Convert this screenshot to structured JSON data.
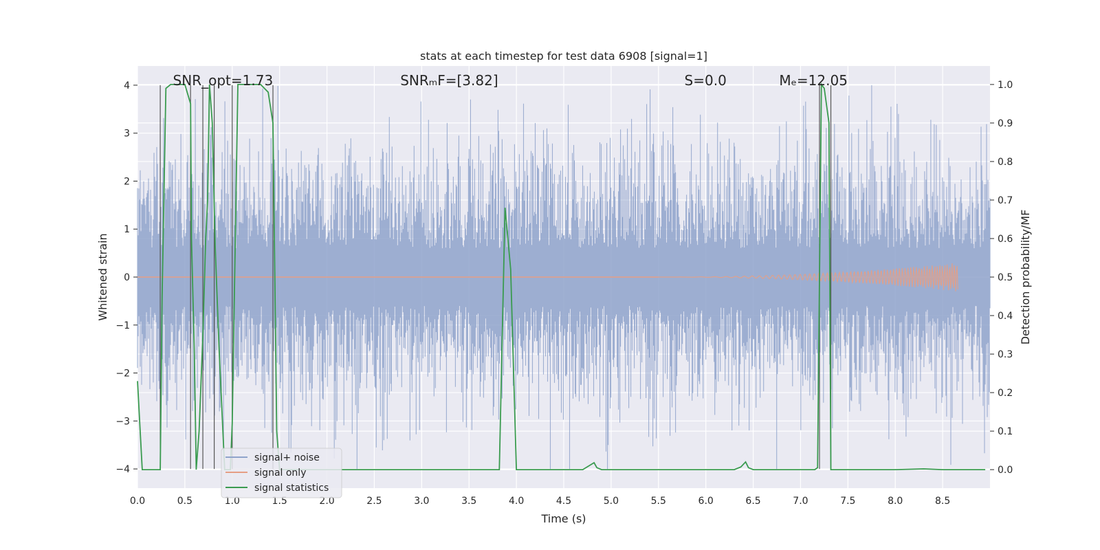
{
  "chart_data": {
    "type": "line",
    "title": "stats at each timestep for test data 6908 [signal=1]",
    "xlabel": "Time (s)",
    "ylabel": "Whitened strain",
    "y2label": "Detection probability/MF",
    "xlim": [
      0.0,
      9.0
    ],
    "ylim": [
      -4.4,
      4.4
    ],
    "y2lim": [
      -0.048,
      1.048
    ],
    "xticks": [
      0.0,
      0.5,
      1.0,
      1.5,
      2.0,
      2.5,
      3.0,
      3.5,
      4.0,
      4.5,
      5.0,
      5.5,
      6.0,
      6.5,
      7.0,
      7.5,
      8.0,
      8.5
    ],
    "xtick_labels": [
      "0.0",
      "0.5",
      "1.0",
      "1.5",
      "2.0",
      "2.5",
      "3.0",
      "3.5",
      "4.0",
      "4.5",
      "5.0",
      "5.5",
      "6.0",
      "6.5",
      "7.0",
      "7.5",
      "8.0",
      "8.5"
    ],
    "yticks": [
      4,
      3,
      2,
      1,
      0,
      -1,
      -2,
      -3,
      -4
    ],
    "ytick_labels": [
      "4",
      "3",
      "2",
      "1",
      "0",
      "−1",
      "−2",
      "−3",
      "−4"
    ],
    "y2ticks": [
      1.0,
      0.9,
      0.8,
      0.7,
      0.6,
      0.5,
      0.4,
      0.3,
      0.2,
      0.1,
      0.0
    ],
    "y2tick_labels": [
      "1.0",
      "0.9",
      "0.8",
      "0.7",
      "0.6",
      "0.5",
      "0.4",
      "0.3",
      "0.2",
      "0.1",
      "0.0"
    ],
    "grid": true,
    "legend_position": "lower-left",
    "annotations": [
      {
        "name": "snr-opt",
        "text": "SNR_opt=1.73",
        "x": 0.2
      },
      {
        "name": "snr-mf",
        "text": "SNRₘF=[3.82]",
        "x": 2.6
      },
      {
        "name": "s-stat",
        "text": "S=0.0",
        "x": 5.6
      },
      {
        "name": "chirp-mass",
        "text": "Mₑ=12.05",
        "x": 6.6
      }
    ],
    "series": [
      {
        "name": "signal+ noise",
        "color": "#8fa3cb",
        "kind": "noise",
        "x_range": [
          0.0,
          9.0
        ],
        "envelope_sigma": 1.0,
        "max_abs": 4.0,
        "note": "dense whitened noise trace"
      },
      {
        "name": "signal only",
        "color": "#e59e84",
        "kind": "chirp",
        "x_range": [
          5.5,
          8.66
        ],
        "amplitude_start": 0.0,
        "amplitude_end": 0.3
      },
      {
        "name": "signal statistics",
        "color": "#3a9b4f",
        "axis": "y2",
        "x": [
          0.0,
          0.05,
          0.1,
          0.24,
          0.26,
          0.3,
          0.35,
          0.5,
          0.56,
          0.57,
          0.6,
          0.62,
          0.65,
          0.69,
          0.72,
          0.74,
          0.76,
          0.79,
          0.82,
          0.86,
          0.92,
          0.98,
          1.0,
          1.06,
          1.1,
          1.3,
          1.38,
          1.43,
          1.47,
          1.5,
          1.6,
          2.0,
          3.0,
          3.8,
          3.82,
          3.88,
          3.94,
          4.0,
          4.1,
          4.5,
          4.7,
          4.78,
          4.82,
          4.85,
          4.9,
          5.5,
          6.3,
          6.37,
          6.42,
          6.45,
          6.5,
          7.15,
          7.18,
          7.22,
          7.25,
          7.3,
          7.32,
          7.35,
          7.4,
          8.0,
          8.3,
          8.5,
          8.95
        ],
        "y": [
          0.23,
          0.0,
          0.0,
          0.0,
          0.45,
          0.99,
          1.0,
          1.0,
          0.95,
          0.6,
          0.3,
          0.0,
          0.1,
          0.35,
          0.6,
          0.7,
          1.0,
          0.9,
          0.58,
          0.32,
          0.0,
          0.0,
          0.12,
          1.0,
          1.0,
          1.0,
          0.98,
          0.9,
          0.1,
          0.0,
          0.0,
          0.0,
          0.0,
          0.0,
          0.0,
          0.68,
          0.52,
          0.0,
          0.0,
          0.0,
          0.0,
          0.012,
          0.018,
          0.005,
          0.0,
          0.0,
          0.0,
          0.007,
          0.02,
          0.005,
          0.0,
          0.0,
          0.005,
          1.0,
          0.99,
          0.9,
          0.0,
          0.0,
          0.0,
          0.0,
          0.002,
          0.0,
          0.0
        ]
      }
    ],
    "vlines": [
      0.24,
      0.56,
      0.69,
      0.81,
      1.0,
      1.43,
      7.2,
      7.32
    ]
  }
}
